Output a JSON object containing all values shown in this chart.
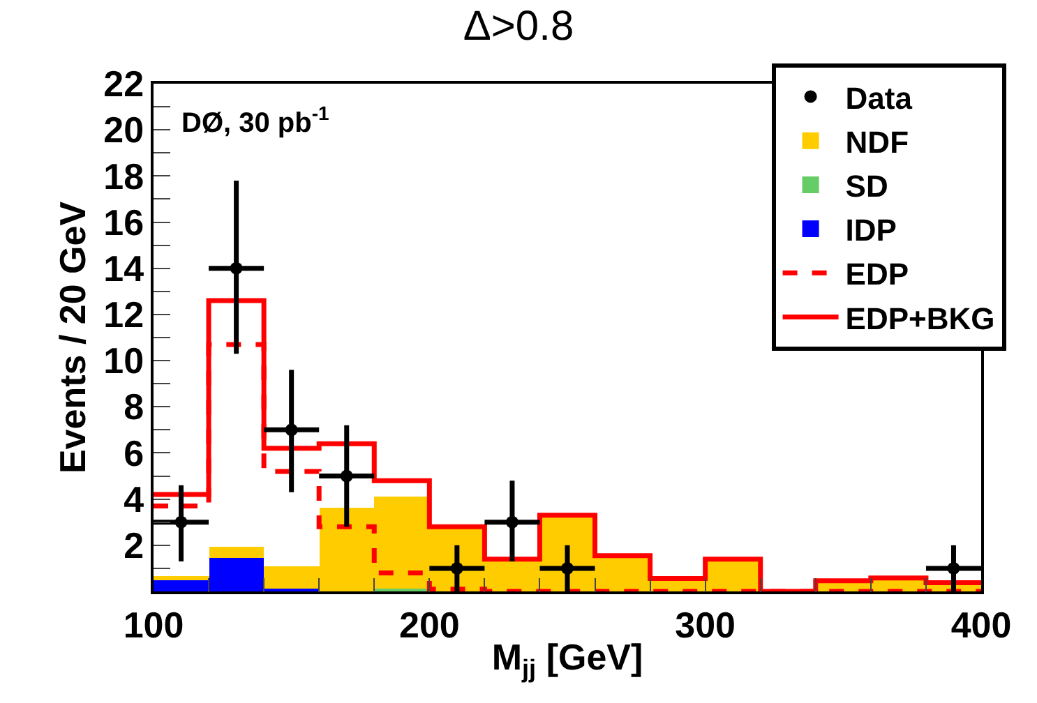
{
  "chart_data": {
    "type": "bar",
    "title": "Δ>0.8",
    "xlabel": "M$_{jj}$ [GeV]",
    "ylabel": "Events / 20 GeV",
    "annotations": [
      "DØ, 30 pb$^{-1}$"
    ],
    "x": [
      110,
      130,
      150,
      170,
      190,
      210,
      230,
      250,
      270,
      290,
      310,
      330,
      350,
      370,
      390
    ],
    "stacked": true,
    "series": [
      {
        "name": "IDP",
        "color": "#0000ff",
        "values": [
          0.54,
          1.45,
          0.1,
          0,
          0,
          0,
          0,
          0,
          0,
          0,
          0,
          0,
          0,
          0,
          0
        ]
      },
      {
        "name": "SD",
        "color": "#66cc66",
        "values": [
          0,
          0,
          0,
          0,
          0.1,
          0,
          0,
          0,
          0,
          0,
          0,
          0,
          0,
          0,
          0
        ]
      },
      {
        "name": "NDF",
        "color": "#ffcc00",
        "values": [
          0.1,
          0.5,
          1.0,
          3.6,
          4.0,
          2.8,
          1.3,
          3.2,
          1.5,
          0.5,
          1.3,
          0,
          0.4,
          0.5,
          0.35
        ]
      },
      {
        "name": "EDP",
        "type": "step",
        "color": "#ff0000",
        "line_style": "dashed",
        "x": [
          100,
          120,
          140,
          160,
          180,
          200,
          220,
          240,
          260,
          280,
          300,
          320,
          340,
          360,
          380,
          400
        ],
        "values": [
          3.7,
          10.7,
          5.2,
          2.8,
          0.8,
          0.1,
          0,
          0,
          0,
          0,
          0,
          0,
          0,
          0,
          0,
          0
        ]
      },
      {
        "name": "EDP+BKG",
        "type": "step",
        "color": "#ff0000",
        "line_style": "solid",
        "x": [
          100,
          120,
          140,
          160,
          180,
          200,
          220,
          240,
          260,
          280,
          300,
          320,
          340,
          360,
          380,
          400
        ],
        "values": [
          4.2,
          12.6,
          6.2,
          6.4,
          4.8,
          2.8,
          1.4,
          3.3,
          1.55,
          0.56,
          1.4,
          0,
          0.46,
          0.58,
          0.38,
          0.38
        ]
      },
      {
        "name": "Data",
        "type": "scatter",
        "color": "#000000",
        "marker": "circle",
        "x": [
          110,
          130,
          150,
          170,
          210,
          230,
          250,
          390
        ],
        "values": [
          3,
          14,
          7,
          5,
          1,
          3,
          1,
          1
        ],
        "errors": [
          [
            1.3,
            4.6
          ],
          [
            10.3,
            17.8
          ],
          [
            4.3,
            9.6
          ],
          [
            2.8,
            7.2
          ],
          [
            0,
            2.0
          ],
          [
            1.3,
            4.8
          ],
          [
            0,
            2.0
          ],
          [
            0,
            2.0
          ]
        ],
        "xerrors": [
          10,
          10,
          10,
          10,
          10,
          10,
          10,
          10
        ]
      }
    ],
    "xlim": [
      100,
      400
    ],
    "xticks": [
      100,
      {
        "value": 120,
        "label": null
      },
      {
        "value": 140,
        "label": null
      },
      {
        "value": 160,
        "label": null
      },
      {
        "value": 180,
        "label": null
      },
      200,
      {
        "value": 220,
        "label": null
      },
      {
        "value": 240,
        "label": null
      },
      {
        "value": 260,
        "label": null
      },
      {
        "value": 280,
        "label": null
      },
      300,
      {
        "value": 320,
        "label": null
      },
      {
        "value": 340,
        "label": null
      },
      {
        "value": 360,
        "label": null
      },
      {
        "value": 380,
        "label": null
      },
      400
    ],
    "ylim": [
      0,
      22
    ],
    "yticks": [
      {
        "value": 1,
        "label": null
      },
      2,
      {
        "value": 3,
        "label": null
      },
      4,
      {
        "value": 5,
        "label": null
      },
      6,
      {
        "value": 7,
        "label": null
      },
      8,
      {
        "value": 9,
        "label": null
      },
      10,
      {
        "value": 11,
        "label": null
      },
      12,
      {
        "value": 13,
        "label": null
      },
      14,
      {
        "value": 15,
        "label": null
      },
      16,
      {
        "value": 17,
        "label": null
      },
      18,
      {
        "value": 19,
        "label": null
      },
      20,
      {
        "value": 21,
        "label": null
      },
      22
    ],
    "grid": false,
    "legend": "top right"
  }
}
